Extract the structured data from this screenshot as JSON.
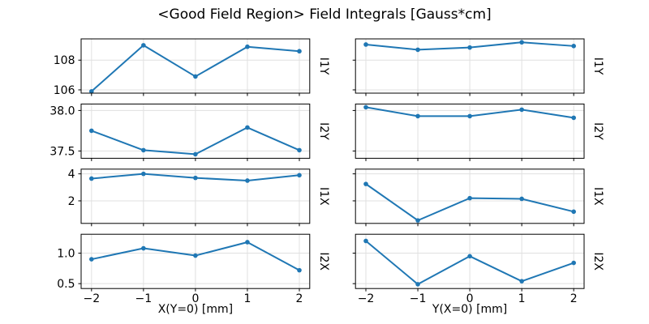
{
  "chart_data": {
    "type": "line",
    "title": "<Good Field Region> Field Integrals [Gauss*cm]",
    "x": [
      -2,
      -1,
      0,
      1,
      2
    ],
    "xlim": [
      -2.2,
      2.2
    ],
    "xtick_labels": [
      "−2",
      "−1",
      "0",
      "1",
      "2"
    ],
    "line_color": "#1f77b4",
    "grid_color": "#e0e0e0",
    "spine_color": "#000000",
    "legend": "none",
    "grid": "on",
    "columns": [
      {
        "xlabel": "X(Y=0) [mm]"
      },
      {
        "xlabel": "Y(X=0) [mm]"
      }
    ],
    "rows": [
      {
        "label": "I1Y",
        "ylim": [
          105.78,
          109.43
        ],
        "yticks": [
          106,
          108
        ],
        "ytick_labels": [
          "106",
          "108"
        ],
        "series": [
          {
            "name": "I1Y vs X(Y=0)",
            "col": 0,
            "values": [
              105.9,
              109.0,
              106.9,
              108.9,
              108.6
            ]
          },
          {
            "name": "I1Y vs Y(X=0)",
            "col": 1,
            "values": [
              109.05,
              108.7,
              108.85,
              109.2,
              108.95
            ]
          }
        ]
      },
      {
        "label": "I2Y",
        "ylim": [
          37.41,
          38.08
        ],
        "yticks": [
          37.5,
          38.0
        ],
        "ytick_labels": [
          "37.5",
          "38.0"
        ],
        "series": [
          {
            "name": "I2Y vs X(Y=0)",
            "col": 0,
            "values": [
              37.75,
              37.51,
              37.46,
              37.79,
              37.51
            ]
          },
          {
            "name": "I2Y vs Y(X=0)",
            "col": 1,
            "values": [
              38.04,
              37.93,
              37.93,
              38.01,
              37.91
            ]
          }
        ]
      },
      {
        "label": "I1X",
        "ylim": [
          0.33,
          4.35
        ],
        "yticks": [
          2,
          4
        ],
        "ytick_labels": [
          "2",
          "4"
        ],
        "series": [
          {
            "name": "I1X vs X(Y=0)",
            "col": 0,
            "values": [
              3.65,
              4.0,
              3.7,
              3.5,
              3.9
            ]
          },
          {
            "name": "I1X vs Y(X=0)",
            "col": 1,
            "values": [
              3.25,
              0.55,
              2.2,
              2.15,
              1.2
            ]
          }
        ]
      },
      {
        "label": "I2X",
        "ylim": [
          0.42,
          1.31
        ],
        "yticks": [
          0.5,
          1.0
        ],
        "ytick_labels": [
          "0.5",
          "1.0"
        ],
        "series": [
          {
            "name": "I2X vs X(Y=0)",
            "col": 0,
            "values": [
              0.9,
              1.08,
              0.96,
              1.18,
              0.72
            ]
          },
          {
            "name": "I2X vs Y(X=0)",
            "col": 1,
            "values": [
              1.2,
              0.49,
              0.95,
              0.54,
              0.84
            ]
          }
        ]
      }
    ]
  }
}
